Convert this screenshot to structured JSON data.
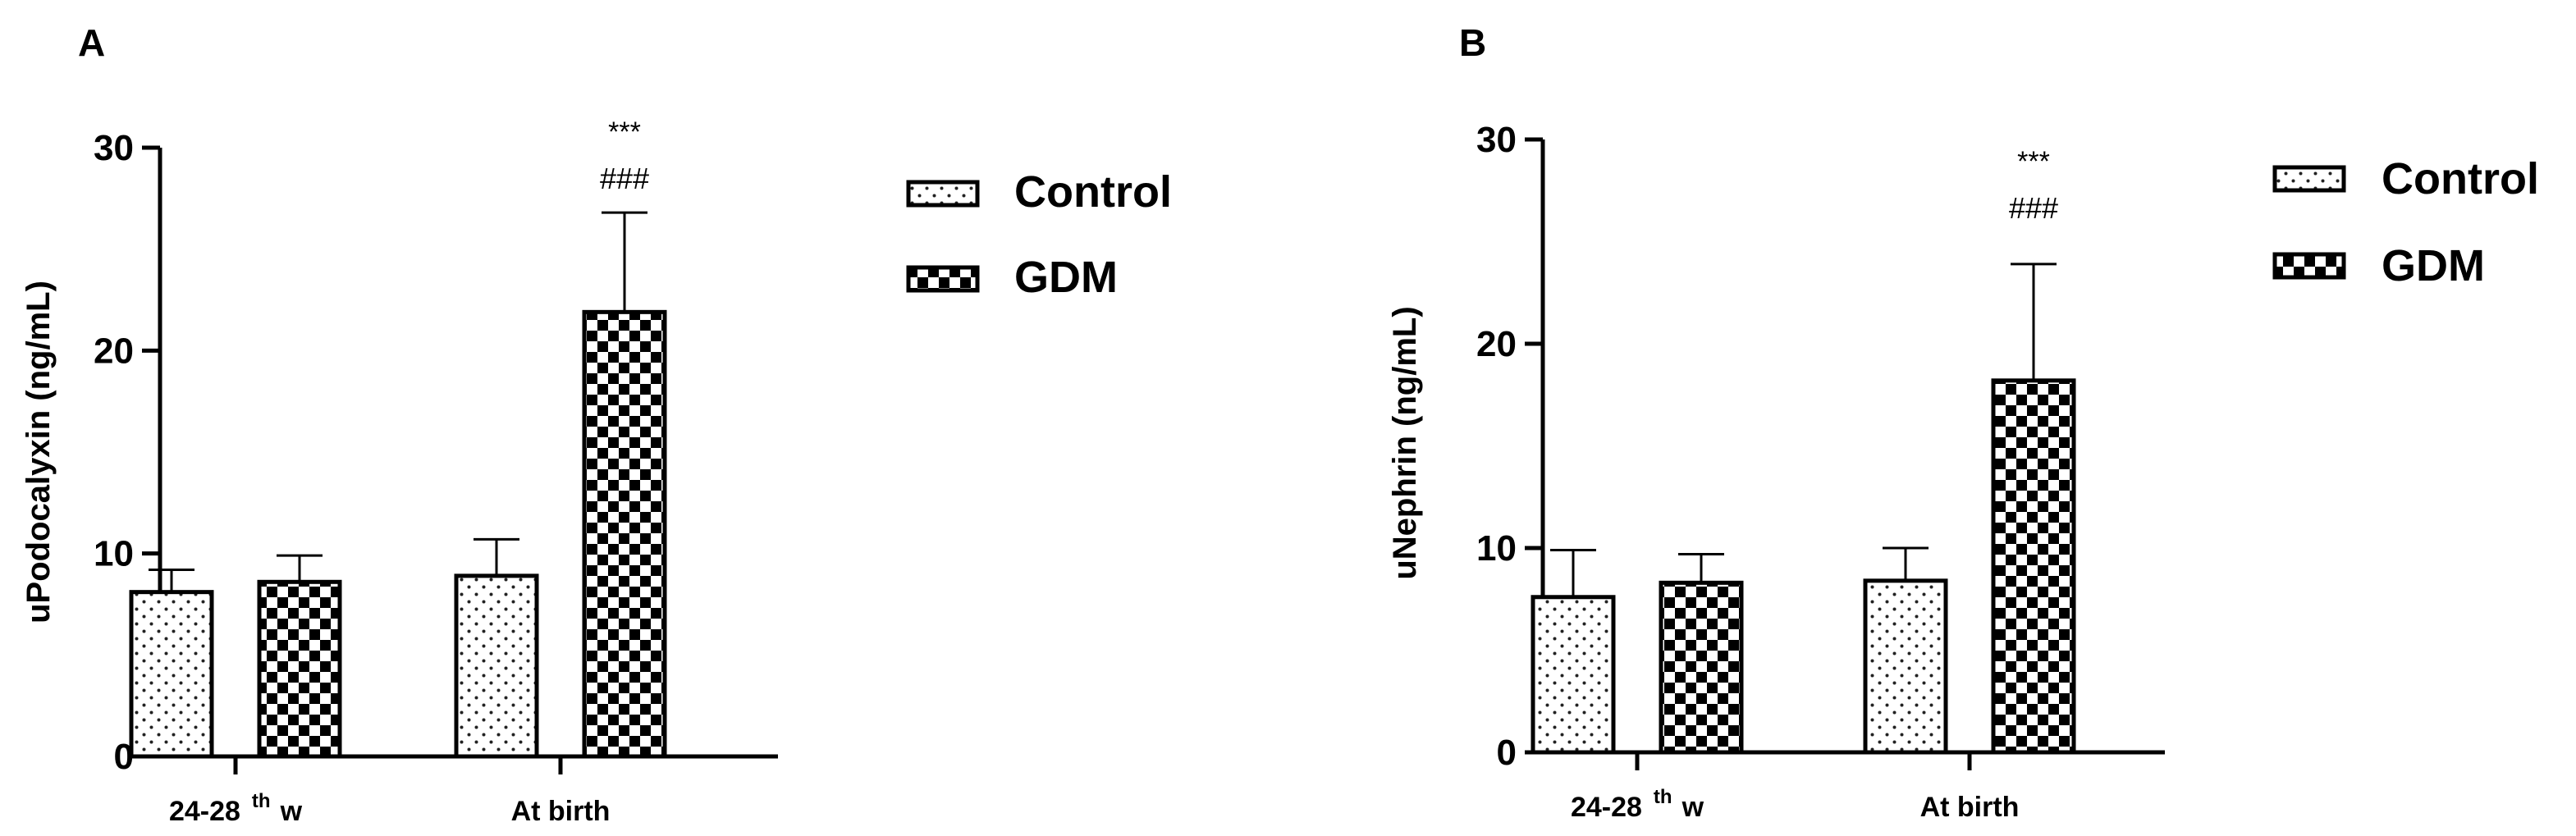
{
  "chart_data": [
    {
      "panel_label": "A",
      "type": "bar",
      "categories": [
        "24-28",
        "At birth"
      ],
      "category_superscripts": [
        "th",
        ""
      ],
      "category_suffixes": [
        "w",
        ""
      ],
      "ylabel": "uPodocalyxin (ng/mL)",
      "ylim": [
        0,
        30
      ],
      "yticks": [
        "0",
        "10",
        "20",
        "30"
      ],
      "error_direction": "upper",
      "series": [
        {
          "name": "Control",
          "pattern": "dots",
          "values": [
            8.1,
            8.9
          ],
          "errors": [
            1.1,
            1.8
          ]
        },
        {
          "name": "GDM",
          "pattern": "checker",
          "values": [
            8.6,
            21.9
          ],
          "errors": [
            1.3,
            4.9
          ]
        }
      ],
      "annotations": [
        {
          "series": 1,
          "category": 1,
          "lines": [
            "***",
            "###"
          ]
        }
      ],
      "legend": "right"
    },
    {
      "panel_label": "B",
      "type": "bar",
      "categories": [
        "24-28",
        "At birth"
      ],
      "category_superscripts": [
        "th",
        ""
      ],
      "category_suffixes": [
        "w",
        ""
      ],
      "ylabel": "uNephrin (ng/mL)",
      "ylim": [
        0,
        30
      ],
      "yticks": [
        "0",
        "10",
        "20",
        "30"
      ],
      "error_direction": "upper",
      "series": [
        {
          "name": "Control",
          "pattern": "dots",
          "values": [
            7.6,
            8.4
          ],
          "errors": [
            2.3,
            1.6
          ]
        },
        {
          "name": "GDM",
          "pattern": "checker",
          "values": [
            8.3,
            18.2
          ],
          "errors": [
            1.4,
            5.7
          ]
        }
      ],
      "annotations": [
        {
          "series": 1,
          "category": 1,
          "lines": [
            "***",
            "###"
          ]
        }
      ],
      "legend": "right"
    }
  ]
}
